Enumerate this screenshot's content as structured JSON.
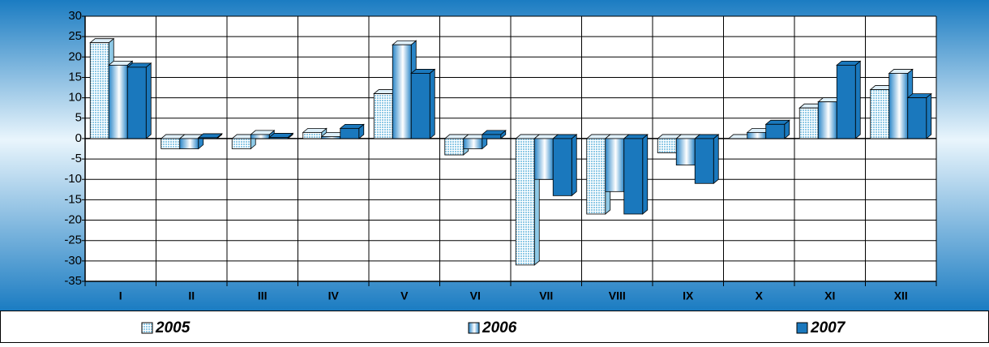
{
  "chart_data": {
    "type": "bar",
    "categories": [
      "I",
      "II",
      "III",
      "IV",
      "V",
      "VI",
      "VII",
      "VIII",
      "IX",
      "X",
      "XI",
      "XII"
    ],
    "series": [
      {
        "name": "2005",
        "color": "#8ec9e6",
        "values": [
          23.5,
          -2.5,
          -2.5,
          1.5,
          11,
          -4,
          -31,
          -18.5,
          -3.5,
          0,
          7.5,
          12
        ]
      },
      {
        "name": "2006",
        "color": "#2a86c8",
        "values": [
          18,
          -2.5,
          1,
          0.5,
          23,
          -2.5,
          -10,
          -13,
          -6.5,
          1.5,
          9,
          16
        ]
      },
      {
        "name": "2007",
        "color": "#1a78bd",
        "values": [
          17.5,
          0.2,
          0.3,
          2.5,
          16,
          1,
          -14,
          -18.5,
          -11,
          3.5,
          18,
          10
        ]
      }
    ],
    "ylim": [
      -35,
      30
    ],
    "yticks": [
      30,
      25,
      20,
      15,
      10,
      5,
      0,
      -5,
      -10,
      -15,
      -20,
      -25,
      -30,
      -35
    ],
    "grid": true
  }
}
